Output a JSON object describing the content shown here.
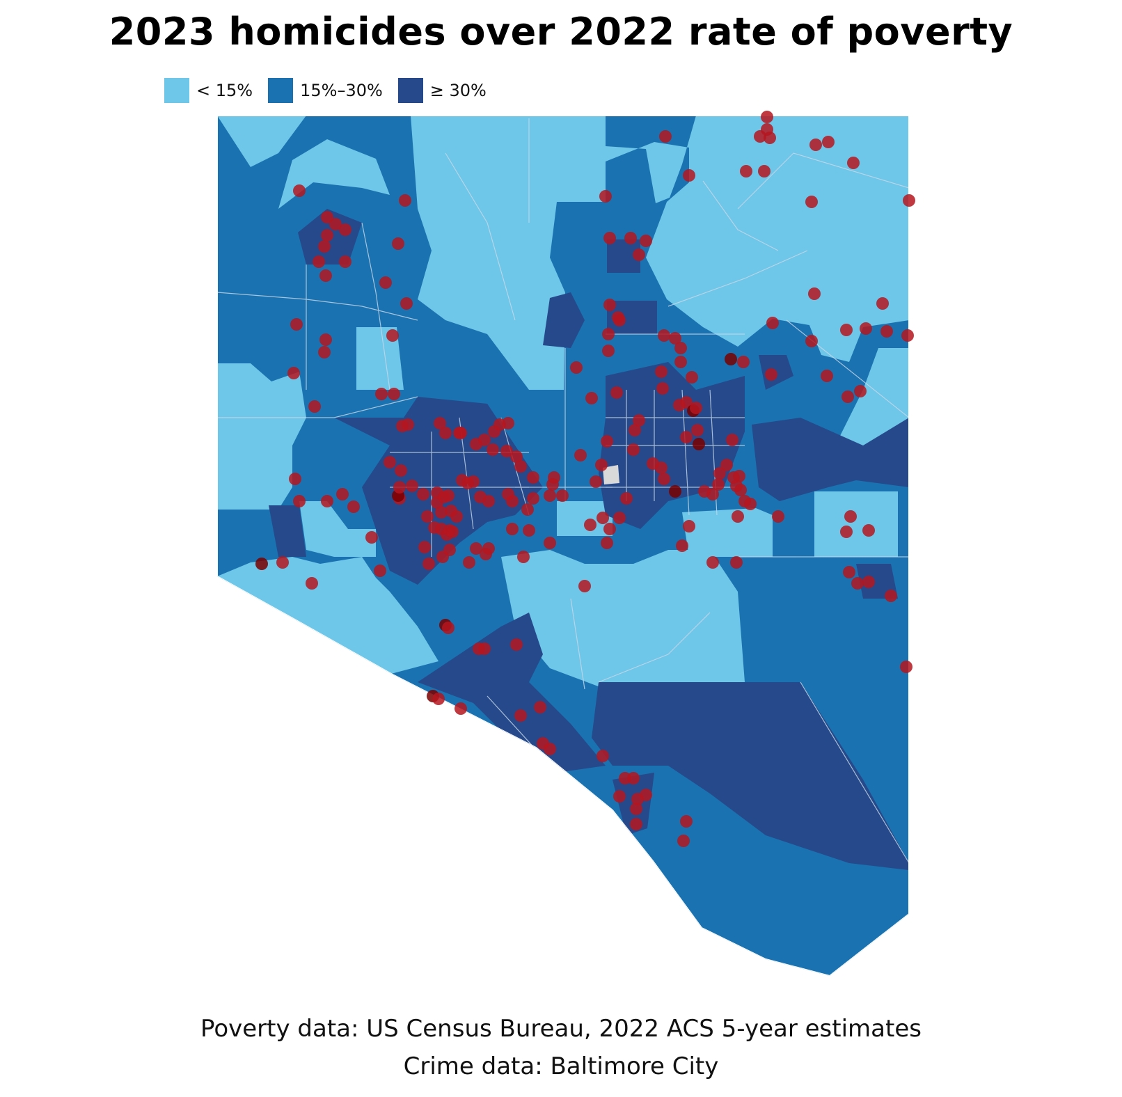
{
  "title": "2023 homicides over 2022 rate of poverty",
  "legend": {
    "items": [
      {
        "label": "< 15%",
        "color": "#6ec6e8"
      },
      {
        "label": "15%–30%",
        "color": "#1a72b1"
      },
      {
        "label": "≥ 30%",
        "color": "#25498a"
      }
    ]
  },
  "map": {
    "homicide_color": "#b5161e",
    "homicide_dark_color": "#7a0000",
    "tract_border_color": "#c9d9e8",
    "nodata_color": "#d9d9d9"
  },
  "sources": {
    "poverty": "Poverty data: US Census Bureau, 2022 ACS 5-year estimates",
    "crime": "Crime data: Baltimore City"
  }
}
